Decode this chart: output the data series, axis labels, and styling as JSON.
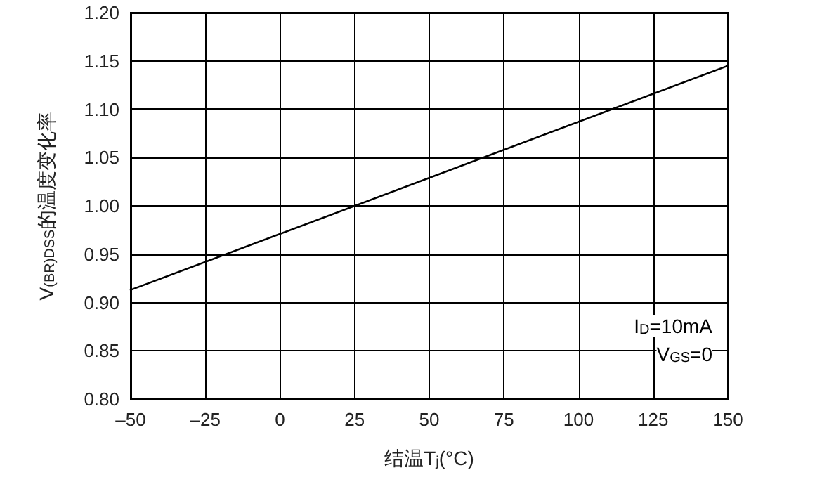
{
  "chart_data": {
    "type": "line",
    "xlabel": "结温T$_{j}$(°C)",
    "ylabel": "V$_{(BR)DSS}$的温度变化率",
    "x": [
      -50,
      150
    ],
    "series": [
      {
        "color": "#000000",
        "values": [
          0.913,
          1.145
        ]
      }
    ],
    "annotations": [
      "I$_{D}$=10mA",
      "V$_{GS}$=0"
    ],
    "xlim": [
      -50,
      150
    ],
    "xticks": [
      {
        "value": -50,
        "label": "–50"
      },
      {
        "value": -25,
        "label": "–25"
      },
      0,
      25,
      50,
      75,
      100,
      125,
      150
    ],
    "ylim": [
      0.8,
      1.2
    ],
    "yticks": [
      {
        "value": 0.8,
        "label": "0.80"
      },
      {
        "value": 0.85,
        "label": "0.85"
      },
      {
        "value": 0.9,
        "label": "0.90"
      },
      {
        "value": 0.95,
        "label": "0.95"
      },
      {
        "value": 1.0,
        "label": "1.00"
      },
      {
        "value": 1.05,
        "label": "1.05"
      },
      {
        "value": 1.1,
        "label": "1.10"
      },
      {
        "value": 1.15,
        "label": "1.15"
      },
      {
        "value": 1.2,
        "label": "1.20"
      }
    ],
    "grid": true,
    "marker": "none",
    "line_style": "solid"
  }
}
